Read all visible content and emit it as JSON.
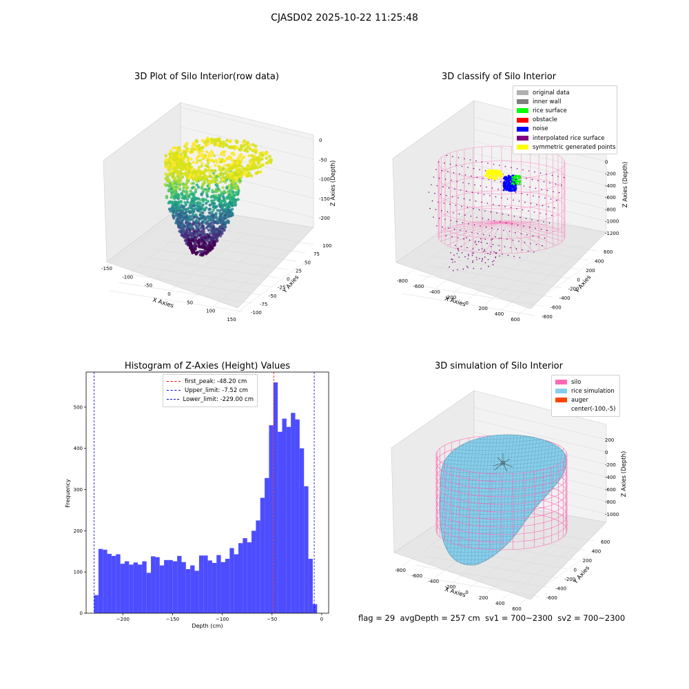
{
  "figure": {
    "suptitle": "CJASD02 2025-10-22 11:25:48",
    "footer": "flag = 29  avgDepth = 257 cm  sv1 = 700~2300  sv2 = 700~2300"
  },
  "chart_data": [
    {
      "type": "scatter",
      "title": "3D Plot of Silo Interior(row data)",
      "xlabel": "X Axies",
      "ylabel": "Y Axies",
      "zlabel": "Z Axies (Depth)",
      "x_ticks": [
        "-150",
        "-100",
        "-50",
        "0",
        "50",
        "100",
        "150"
      ],
      "y_ticks": [
        "-100",
        "-75",
        "-50",
        "-25",
        "0",
        "25",
        "50",
        "75",
        "100"
      ],
      "z_ticks": [
        "0",
        "-50",
        "-100",
        "-150",
        "-200"
      ],
      "colormap": "viridis"
    },
    {
      "type": "scatter",
      "title": "3D classify of Silo Interior",
      "xlabel": "X Axies",
      "ylabel": "Y Axies",
      "zlabel": "Z Axies (Depth)",
      "x_ticks": [
        "-800",
        "-600",
        "-400",
        "-200",
        "0",
        "200",
        "400",
        "600"
      ],
      "y_ticks": [
        "-800",
        "-600",
        "-400",
        "-200",
        "0",
        "200",
        "400",
        "600"
      ],
      "z_ticks": [
        "200",
        "0",
        "-200",
        "-400",
        "-600",
        "-800",
        "-1000",
        "-1200"
      ],
      "legend": [
        {
          "label": "original data",
          "color": "#b0b0b0"
        },
        {
          "label": "inner wall",
          "color": "#808080"
        },
        {
          "label": "rice surface",
          "color": "#00ff00"
        },
        {
          "label": "obstacle",
          "color": "#ff0000"
        },
        {
          "label": "noise",
          "color": "#0000ff"
        },
        {
          "label": "interpolated rice surface",
          "color": "#800080"
        },
        {
          "label": "symmetric generated points",
          "color": "#ffff00"
        }
      ]
    },
    {
      "type": "bar",
      "title": "Histogram of Z-Axies (Height) Values",
      "xlabel": "Depth (cm)",
      "ylabel": "Frequency",
      "xlim": [
        -237,
        7
      ],
      "ylim": [
        0,
        585
      ],
      "x_ticks": [
        -200,
        -150,
        -100,
        -50,
        0
      ],
      "y_ticks": [
        0,
        100,
        200,
        300,
        400,
        500
      ],
      "bin_start": -229.0,
      "bin_width": 4.4,
      "values": [
        44,
        156,
        154,
        144,
        139,
        143,
        120,
        126,
        118,
        123,
        118,
        126,
        98,
        138,
        136,
        116,
        129,
        129,
        126,
        139,
        124,
        107,
        116,
        103,
        140,
        140,
        128,
        122,
        141,
        124,
        132,
        158,
        143,
        170,
        182,
        172,
        200,
        225,
        280,
        328,
        456,
        560,
        440,
        472,
        452,
        486,
        470,
        400,
        308,
        132,
        22
      ],
      "bar_color": "#4d4dff",
      "lines": [
        {
          "label": "first_peak: -48.20 cm",
          "x": -48.2,
          "color": "#ff0000"
        },
        {
          "label": "Upper_limit: -7.52 cm",
          "x": -7.52,
          "color": "#0000cc"
        },
        {
          "label": "Lower_limit: -229.00 cm",
          "x": -229.0,
          "color": "#0000cc"
        }
      ]
    },
    {
      "type": "scatter",
      "title": "3D simulation of Silo Interior",
      "xlabel": "X Axies",
      "ylabel": "Y Axies",
      "zlabel": "Z Axies (Depth)",
      "x_ticks": [
        "-800",
        "-600",
        "-400",
        "-200",
        "0",
        "200",
        "400",
        "600"
      ],
      "y_ticks": [
        "-600",
        "-400",
        "-200",
        "0",
        "200",
        "400",
        "600"
      ],
      "z_ticks": [
        "200",
        "0",
        "-200",
        "-400",
        "-600",
        "-800",
        "-1000"
      ],
      "legend": [
        {
          "label": "silo",
          "color": "#ff69b4"
        },
        {
          "label": "rice simulation",
          "color": "#87ceeb"
        },
        {
          "label": "auger",
          "color": "#ff4500"
        },
        {
          "label": "center(-100,-5)",
          "color": "#ffffff"
        }
      ]
    }
  ]
}
